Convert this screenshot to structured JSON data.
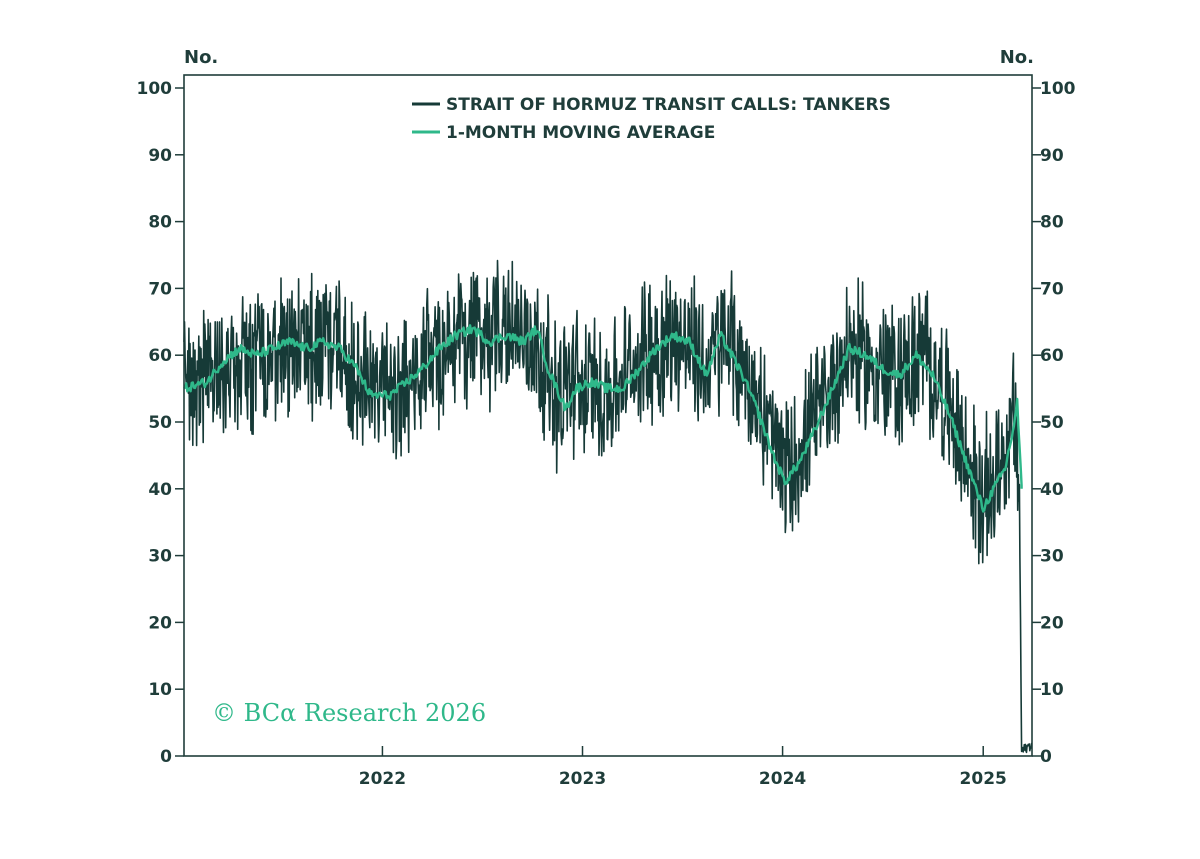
{
  "chart_data": {
    "type": "line",
    "title": "",
    "left_axis_label": "No.",
    "right_axis_label": "No.",
    "ylim": [
      0,
      100
    ],
    "y_ticks": [
      "100",
      "90",
      "80",
      "70",
      "60",
      "50",
      "40",
      "30",
      "20",
      "10",
      "0"
    ],
    "x_range": [
      "2021-01-04",
      "2025-03-31"
    ],
    "x_ticks": [
      {
        "date": "2022-01-01",
        "label": "2022"
      },
      {
        "date": "2023-01-01",
        "label": "2023"
      },
      {
        "date": "2024-01-01",
        "label": "2024"
      },
      {
        "date": "2025-01-01",
        "label": "2025"
      }
    ],
    "legend_position": "top-center",
    "grid": false,
    "series": [
      {
        "name": "STRAIT OF HORMUZ TRANSIT CALLS: TANKERS",
        "color": "#163a37",
        "style": "daily",
        "anchors": [
          [
            "2021-01-04",
            56
          ],
          [
            "2021-04-01",
            58
          ],
          [
            "2021-07-01",
            61
          ],
          [
            "2021-10-01",
            62
          ],
          [
            "2021-11-20",
            55
          ],
          [
            "2022-01-15",
            54
          ],
          [
            "2022-03-15",
            57
          ],
          [
            "2022-05-01",
            62
          ],
          [
            "2022-06-15",
            64
          ],
          [
            "2022-08-01",
            63
          ],
          [
            "2022-10-01",
            63
          ],
          [
            "2022-11-15",
            54
          ],
          [
            "2022-12-15",
            56
          ],
          [
            "2023-01-15",
            55
          ],
          [
            "2023-03-01",
            55
          ],
          [
            "2023-05-01",
            61
          ],
          [
            "2023-07-01",
            63
          ],
          [
            "2023-08-15",
            58
          ],
          [
            "2023-09-20",
            63
          ],
          [
            "2023-11-01",
            56
          ],
          [
            "2023-12-15",
            47
          ],
          [
            "2024-01-10",
            42
          ],
          [
            "2024-03-01",
            50
          ],
          [
            "2024-05-01",
            61
          ],
          [
            "2024-06-15",
            58
          ],
          [
            "2024-08-01",
            57
          ],
          [
            "2024-09-15",
            60
          ],
          [
            "2024-11-01",
            52
          ],
          [
            "2024-12-01",
            44
          ],
          [
            "2025-01-01",
            38
          ],
          [
            "2025-02-01",
            44
          ],
          [
            "2025-02-25",
            50
          ],
          [
            "2025-03-08",
            40
          ],
          [
            "2025-03-12",
            0
          ],
          [
            "2025-03-31",
            1
          ]
        ],
        "amplitude": 9,
        "min": 26,
        "max": 87
      },
      {
        "name": "1-MONTH MOVING AVERAGE",
        "color": "#2fb88a",
        "style": "smooth",
        "values": [
          [
            "2021-01-04",
            55
          ],
          [
            "2021-02-15",
            56
          ],
          [
            "2021-03-15",
            59
          ],
          [
            "2021-04-15",
            61
          ],
          [
            "2021-05-15",
            60
          ],
          [
            "2021-06-15",
            61
          ],
          [
            "2021-07-15",
            62
          ],
          [
            "2021-08-15",
            61
          ],
          [
            "2021-09-15",
            62
          ],
          [
            "2021-10-15",
            61
          ],
          [
            "2021-11-15",
            58
          ],
          [
            "2021-12-10",
            54
          ],
          [
            "2022-01-15",
            54
          ],
          [
            "2022-02-15",
            56
          ],
          [
            "2022-03-15",
            58
          ],
          [
            "2022-04-15",
            61
          ],
          [
            "2022-05-15",
            63
          ],
          [
            "2022-06-15",
            64
          ],
          [
            "2022-07-15",
            62
          ],
          [
            "2022-08-15",
            63
          ],
          [
            "2022-09-15",
            62
          ],
          [
            "2022-10-10",
            64
          ],
          [
            "2022-10-30",
            58
          ],
          [
            "2022-12-01",
            52
          ],
          [
            "2022-12-20",
            55
          ],
          [
            "2023-01-15",
            56
          ],
          [
            "2023-02-15",
            55
          ],
          [
            "2023-03-15",
            55
          ],
          [
            "2023-04-15",
            58
          ],
          [
            "2023-05-15",
            61
          ],
          [
            "2023-06-15",
            63
          ],
          [
            "2023-07-15",
            62
          ],
          [
            "2023-08-15",
            57
          ],
          [
            "2023-09-10",
            63
          ],
          [
            "2023-09-30",
            60
          ],
          [
            "2023-10-20",
            57
          ],
          [
            "2023-11-15",
            52
          ],
          [
            "2023-12-15",
            45
          ],
          [
            "2024-01-05",
            41
          ],
          [
            "2024-02-01",
            44
          ],
          [
            "2024-03-01",
            49
          ],
          [
            "2024-04-01",
            55
          ],
          [
            "2024-05-01",
            61
          ],
          [
            "2024-06-01",
            60
          ],
          [
            "2024-07-01",
            58
          ],
          [
            "2024-08-01",
            57
          ],
          [
            "2024-09-01",
            60
          ],
          [
            "2024-10-01",
            57
          ],
          [
            "2024-11-01",
            51
          ],
          [
            "2024-12-01",
            44
          ],
          [
            "2025-01-01",
            37
          ],
          [
            "2025-01-20",
            40
          ],
          [
            "2025-02-10",
            43
          ],
          [
            "2025-02-25",
            49
          ],
          [
            "2025-03-04",
            53
          ],
          [
            "2025-03-12",
            40
          ]
        ]
      }
    ]
  },
  "watermark": "© BCα Research 2026"
}
